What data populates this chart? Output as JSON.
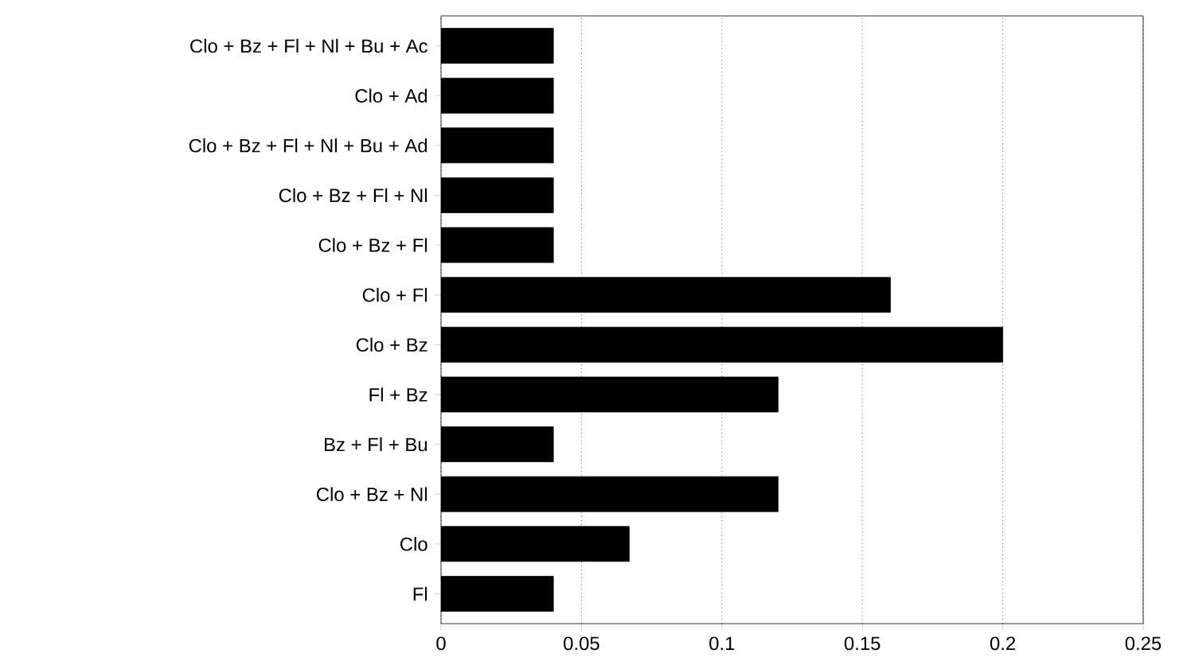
{
  "chart_data": {
    "type": "bar",
    "orientation": "horizontal",
    "categories": [
      "Clo + Bz + Fl + Nl + Bu + Ac",
      "Clo + Ad",
      "Clo + Bz + Fl + Nl + Bu + Ad",
      "Clo + Bz + Fl + Nl",
      "Clo + Bz + Fl",
      "Clo + Fl",
      "Clo + Bz",
      "Fl + Bz",
      "Bz + Fl + Bu",
      "Clo + Bz + Nl",
      "Clo",
      "Fl"
    ],
    "values": [
      0.04,
      0.04,
      0.04,
      0.04,
      0.04,
      0.16,
      0.2,
      0.12,
      0.04,
      0.12,
      0.067,
      0.04
    ],
    "color": "#000000",
    "xlim": [
      0,
      0.25
    ],
    "xticks": [
      0,
      0.05,
      0.1,
      0.15,
      0.2,
      0.25
    ],
    "grid": "x"
  }
}
